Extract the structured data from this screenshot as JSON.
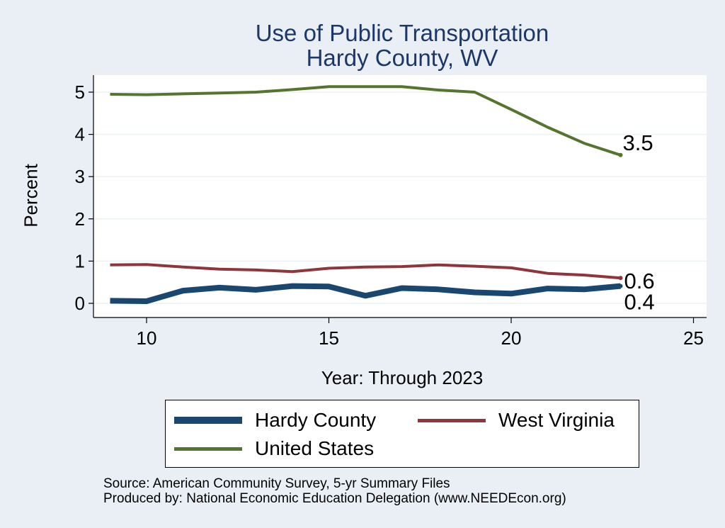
{
  "chart_data": {
    "type": "line",
    "title": "Use of Public Transportation",
    "subtitle": "Hardy County, WV",
    "xlabel": "Year: Through 2023",
    "ylabel": "Percent",
    "xlim": [
      9,
      25
    ],
    "ylim": [
      0,
      5.2
    ],
    "xticks": [
      "10",
      "15",
      "20",
      "25"
    ],
    "yticks": [
      "0",
      "1",
      "2",
      "3",
      "4",
      "5"
    ],
    "grid": true,
    "x": [
      9,
      10,
      11,
      12,
      13,
      14,
      15,
      16,
      17,
      18,
      19,
      20,
      21,
      22,
      23
    ],
    "series": [
      {
        "name": "Hardy County",
        "color": "#1a476f",
        "values": [
          0.06,
          0.05,
          0.3,
          0.37,
          0.32,
          0.41,
          0.4,
          0.18,
          0.36,
          0.33,
          0.26,
          0.23,
          0.35,
          0.33,
          0.41
        ],
        "end_label": "0.4"
      },
      {
        "name": "West Virginia",
        "color": "#90353b",
        "values": [
          0.91,
          0.92,
          0.86,
          0.81,
          0.79,
          0.75,
          0.83,
          0.86,
          0.87,
          0.91,
          0.88,
          0.84,
          0.71,
          0.67,
          0.6
        ],
        "end_label": "0.6"
      },
      {
        "name": "United States",
        "color": "#55752f",
        "values": [
          4.95,
          4.94,
          4.96,
          4.98,
          5.0,
          5.06,
          5.13,
          5.13,
          5.13,
          5.05,
          5.0,
          4.59,
          4.17,
          3.79,
          3.51
        ],
        "end_label": "3.5"
      }
    ],
    "legend_position": "bottom"
  },
  "legend": {
    "hardy": "Hardy County",
    "wv": "West Virginia",
    "us": "United States"
  },
  "footer": {
    "source": "Source: American Community Survey, 5-yr Summary Files",
    "produced": "Produced by: National Economic Education Delegation (www.NEEDEcon.org)"
  }
}
